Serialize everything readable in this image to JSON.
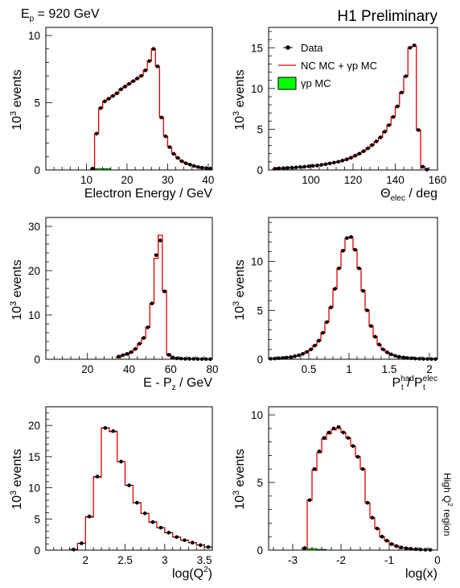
{
  "header": {
    "left": "E",
    "left_sub": "p",
    "left_rest": " = 920 GeV",
    "right": "H1 Preliminary"
  },
  "side_label": "High Q² region",
  "legend": {
    "data": "Data",
    "mc": "NC MC + γp MC",
    "gp": "γp MC"
  },
  "colors": {
    "mc": "#e00000",
    "gp": "#00ff00",
    "data": "#000000"
  },
  "chart_data": [
    {
      "type": "histogram",
      "xlabel": "Electron Energy / GeV",
      "ylabel_pow": "3",
      "ylabel": "events",
      "xlim": [
        0,
        41
      ],
      "ylim": [
        0,
        10.6
      ],
      "xticks": [
        10,
        20,
        30,
        40
      ],
      "yticks": [
        0,
        5,
        10
      ],
      "edges": [
        11,
        12,
        13,
        14,
        15,
        16,
        17,
        18,
        19,
        20,
        21,
        22,
        23,
        24,
        25,
        26,
        27,
        28,
        29,
        30,
        31,
        32,
        33,
        34,
        35,
        36,
        37,
        38,
        39,
        40,
        41
      ],
      "mc": [
        0.1,
        2.7,
        4.6,
        5.1,
        5.3,
        5.5,
        5.7,
        6.0,
        6.2,
        6.4,
        6.6,
        6.8,
        7.0,
        7.4,
        8.1,
        9.0,
        7.7,
        3.9,
        2.5,
        1.7,
        1.2,
        0.9,
        0.65,
        0.5,
        0.4,
        0.3,
        0.22,
        0.17,
        0.13,
        0.1
      ],
      "data": [
        0.1,
        2.7,
        4.6,
        5.1,
        5.3,
        5.5,
        5.7,
        6.0,
        6.2,
        6.4,
        6.6,
        6.8,
        7.0,
        7.4,
        8.1,
        9.0,
        7.7,
        3.9,
        2.5,
        1.7,
        1.2,
        0.9,
        0.65,
        0.5,
        0.4,
        0.3,
        0.22,
        0.17,
        0.13,
        0.1
      ],
      "gp_edges": [
        12,
        16
      ],
      "gp": [
        0.1
      ]
    },
    {
      "type": "histogram",
      "xlabel": "Θ",
      "xlabel_sub": "elec",
      "xlabel_rest": " / deg",
      "ylabel_pow": "3",
      "ylabel": "events",
      "xlim": [
        80,
        160
      ],
      "ylim": [
        0,
        17.5
      ],
      "xticks": [
        100,
        120,
        140,
        160
      ],
      "yticks": [
        0,
        5,
        10,
        15
      ],
      "edges": [
        82,
        84,
        86,
        88,
        90,
        92,
        94,
        96,
        98,
        100,
        102,
        104,
        106,
        108,
        110,
        112,
        114,
        116,
        118,
        120,
        122,
        124,
        126,
        128,
        130,
        132,
        134,
        136,
        138,
        140,
        142,
        144,
        146,
        148,
        150,
        152,
        154,
        156
      ],
      "mc": [
        0.15,
        0.2,
        0.22,
        0.25,
        0.28,
        0.32,
        0.36,
        0.4,
        0.45,
        0.5,
        0.55,
        0.62,
        0.7,
        0.8,
        0.9,
        1.0,
        1.15,
        1.3,
        1.5,
        1.75,
        2.0,
        2.3,
        2.65,
        3.05,
        3.5,
        4.0,
        4.7,
        5.5,
        6.5,
        7.8,
        9.5,
        11.5,
        15.0,
        15.2,
        4.9,
        0.4,
        0.05
      ],
      "data": [
        0.15,
        0.2,
        0.22,
        0.25,
        0.28,
        0.32,
        0.36,
        0.4,
        0.45,
        0.5,
        0.55,
        0.62,
        0.7,
        0.8,
        0.9,
        1.0,
        1.15,
        1.3,
        1.5,
        1.75,
        2.0,
        2.3,
        2.65,
        3.05,
        3.5,
        4.0,
        4.7,
        5.5,
        6.5,
        7.8,
        9.5,
        11.5,
        15.0,
        15.3,
        4.9,
        0.4,
        0.05
      ]
    },
    {
      "type": "histogram",
      "xlabel": "E - P",
      "xlabel_sub": "z",
      "xlabel_rest": " / GeV",
      "ylabel_pow": "3",
      "ylabel": "events",
      "xlim": [
        0,
        80
      ],
      "ylim": [
        0,
        32
      ],
      "xticks": [
        20,
        40,
        60,
        80
      ],
      "yticks": [
        0,
        10,
        20,
        30
      ],
      "edges": [
        34,
        36,
        38,
        40,
        42,
        44,
        46,
        48,
        50,
        52,
        54,
        56,
        58,
        60,
        62,
        64,
        66,
        68,
        70,
        72,
        74,
        76,
        78,
        80
      ],
      "mc": [
        0.6,
        0.9,
        1.2,
        1.6,
        2.3,
        3.5,
        4.8,
        7.2,
        12.6,
        22.8,
        28.0,
        15.5,
        1.0,
        0.4,
        0.2,
        0.15,
        0.1,
        0.1,
        0.08,
        0.06,
        0.05,
        0.04,
        0.03
      ],
      "data": [
        0.6,
        0.9,
        1.2,
        1.6,
        2.3,
        3.5,
        4.8,
        7.2,
        12.6,
        23.5,
        26.8,
        15.3,
        1.0,
        0.4,
        0.2,
        0.15,
        0.1,
        0.1,
        0.08,
        0.06,
        0.05,
        0.04,
        0.03
      ]
    },
    {
      "type": "histogram",
      "xlabel": "P",
      "xlabel_sup1": "had",
      "xlabel_mid": "t",
      "xlabel_rest": " / P",
      "xlabel_sup2": "elec",
      "xlabel_sub2": "t",
      "ylabel_pow": "3",
      "ylabel": "events",
      "xlim": [
        0,
        2.1
      ],
      "ylim": [
        0,
        14.5
      ],
      "xticks": [
        0.5,
        1,
        1.5,
        2
      ],
      "yticks": [
        0,
        5,
        10
      ],
      "edges": [
        0.0,
        0.05,
        0.1,
        0.15,
        0.2,
        0.25,
        0.3,
        0.35,
        0.4,
        0.45,
        0.5,
        0.55,
        0.6,
        0.65,
        0.7,
        0.75,
        0.8,
        0.85,
        0.9,
        0.95,
        1.0,
        1.05,
        1.1,
        1.15,
        1.2,
        1.25,
        1.3,
        1.35,
        1.4,
        1.45,
        1.5,
        1.55,
        1.6,
        1.65,
        1.7,
        1.75,
        1.8,
        1.85,
        1.9,
        1.95,
        2.0,
        2.05,
        2.1
      ],
      "mc": [
        0.05,
        0.07,
        0.1,
        0.13,
        0.17,
        0.22,
        0.3,
        0.4,
        0.55,
        0.75,
        1.0,
        1.4,
        1.9,
        2.7,
        3.8,
        5.3,
        7.2,
        9.3,
        11.1,
        12.4,
        12.5,
        11.2,
        9.3,
        7.0,
        5.0,
        3.4,
        2.3,
        1.5,
        1.0,
        0.7,
        0.5,
        0.35,
        0.25,
        0.18,
        0.13,
        0.1,
        0.07,
        0.05,
        0.04,
        0.03,
        0.02,
        0.02
      ],
      "data": [
        0.05,
        0.07,
        0.1,
        0.13,
        0.17,
        0.22,
        0.3,
        0.4,
        0.55,
        0.75,
        1.0,
        1.4,
        1.9,
        2.7,
        3.8,
        5.3,
        7.2,
        9.3,
        11.1,
        12.4,
        12.5,
        11.2,
        9.3,
        7.0,
        5.0,
        3.4,
        2.3,
        1.5,
        1.0,
        0.7,
        0.5,
        0.35,
        0.25,
        0.18,
        0.13,
        0.1,
        0.07,
        0.05,
        0.04,
        0.03,
        0.02,
        0.02
      ]
    },
    {
      "type": "histogram",
      "xlabel": "log(Q",
      "xlabel_sup1": "2",
      "xlabel_rest": ")",
      "ylabel_pow": "3",
      "ylabel": "events",
      "xlim": [
        1.5,
        3.6
      ],
      "ylim": [
        0,
        23
      ],
      "xticks": [
        2,
        2.5,
        3,
        3.5
      ],
      "yticks": [
        0,
        5,
        10,
        15,
        20
      ],
      "edges": [
        1.8,
        1.9,
        2.0,
        2.1,
        2.2,
        2.3,
        2.4,
        2.5,
        2.6,
        2.7,
        2.8,
        2.9,
        3.0,
        3.1,
        3.2,
        3.3,
        3.4,
        3.5,
        3.6
      ],
      "mc": [
        0.1,
        1.1,
        5.3,
        11.7,
        19.6,
        19.0,
        14.2,
        10.4,
        7.6,
        5.9,
        4.5,
        3.6,
        2.8,
        2.1,
        1.6,
        1.2,
        0.8,
        0.5
      ],
      "data": [
        0.1,
        1.1,
        5.4,
        11.8,
        19.6,
        19.1,
        14.2,
        10.4,
        7.6,
        5.9,
        4.5,
        3.6,
        2.8,
        2.1,
        1.6,
        1.2,
        0.8,
        0.5
      ]
    },
    {
      "type": "histogram",
      "xlabel": "log(x)",
      "ylabel_pow": "3",
      "ylabel": "events",
      "xlim": [
        -3.5,
        0
      ],
      "ylim": [
        0,
        10.6
      ],
      "xticks": [
        -3,
        -2,
        -1,
        0
      ],
      "yticks": [
        0,
        5,
        10
      ],
      "edges": [
        -2.8,
        -2.7,
        -2.6,
        -2.5,
        -2.4,
        -2.3,
        -2.2,
        -2.1,
        -2.0,
        -1.9,
        -1.8,
        -1.7,
        -1.6,
        -1.5,
        -1.4,
        -1.3,
        -1.2,
        -1.1,
        -1.0,
        -0.9,
        -0.8,
        -0.7,
        -0.6,
        -0.5,
        -0.4,
        -0.3,
        -0.2,
        -0.1
      ],
      "mc": [
        0.15,
        3.7,
        5.9,
        7.2,
        8.2,
        8.6,
        8.9,
        9.0,
        8.7,
        8.3,
        7.7,
        6.9,
        6.0,
        3.5,
        2.4,
        1.6,
        1.0,
        0.7,
        0.45,
        0.3,
        0.2,
        0.14,
        0.1,
        0.07,
        0.05,
        0.03,
        0.02
      ],
      "data": [
        0.15,
        3.7,
        6.0,
        7.3,
        8.3,
        8.7,
        9.0,
        9.1,
        8.7,
        8.3,
        7.7,
        6.9,
        6.0,
        3.5,
        2.4,
        1.6,
        1.0,
        0.7,
        0.45,
        0.3,
        0.2,
        0.14,
        0.1,
        0.07,
        0.05,
        0.03,
        0.02
      ],
      "gp_edges": [
        -2.7,
        -2.5,
        -2.3
      ],
      "gp": [
        0.12,
        0.06
      ]
    }
  ]
}
